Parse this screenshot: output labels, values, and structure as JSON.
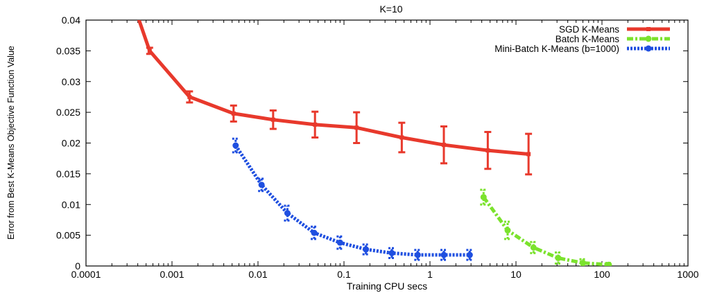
{
  "chart_data": {
    "type": "line",
    "title": "K=10",
    "xlabel": "Training CPU secs",
    "ylabel": "Error from Best K-Means Objective Function Value",
    "x_scale": "log",
    "xlim": [
      0.0001,
      1000
    ],
    "ylim": [
      0,
      0.04
    ],
    "x_ticks": [
      0.0001,
      0.001,
      0.01,
      0.1,
      1,
      10,
      100,
      1000
    ],
    "x_tick_labels": [
      "0.0001",
      "0.001",
      "0.01",
      "0.1",
      "1",
      "10",
      "100",
      "1000"
    ],
    "y_ticks": [
      0,
      0.005,
      0.01,
      0.015,
      0.02,
      0.025,
      0.03,
      0.035,
      0.04
    ],
    "y_tick_labels": [
      "0",
      "0.005",
      "0.01",
      "0.015",
      "0.02",
      "0.025",
      "0.03",
      "0.035",
      "0.04"
    ],
    "grid": false,
    "legend_position": "top-right",
    "series": [
      {
        "name": "SGD K-Means",
        "color": "#e8392c",
        "style": "solid",
        "x": [
          0.00038,
          0.00055,
          0.0016,
          0.0052,
          0.015,
          0.046,
          0.14,
          0.47,
          1.45,
          4.7,
          14
        ],
        "y": [
          0.0415,
          0.035,
          0.0275,
          0.0248,
          0.0238,
          0.023,
          0.0225,
          0.0209,
          0.0197,
          0.0188,
          0.0182
        ],
        "err": [
          0,
          0.0005,
          0.0009,
          0.0013,
          0.0015,
          0.0021,
          0.0025,
          0.0024,
          0.003,
          0.003,
          0.0033
        ]
      },
      {
        "name": "Batch K-Means",
        "color": "#7be22d",
        "style": "dash-dot",
        "x": [
          4.2,
          8.0,
          16,
          31,
          60,
          120
        ],
        "y": [
          0.0112,
          0.0058,
          0.003,
          0.0013,
          0.0005,
          0.0002
        ],
        "err": [
          0.0012,
          0.0014,
          0.0009,
          0.0009,
          0.0006,
          0.0003
        ]
      },
      {
        "name": "Mini-Batch K-Means (b=1000)",
        "color": "#1f4fe0",
        "style": "dotted",
        "x": [
          0.0055,
          0.011,
          0.022,
          0.045,
          0.09,
          0.18,
          0.36,
          0.72,
          1.45,
          2.9
        ],
        "y": [
          0.0196,
          0.0132,
          0.0086,
          0.0054,
          0.0038,
          0.0027,
          0.0021,
          0.0018,
          0.0018,
          0.0018
        ],
        "err": [
          0.0011,
          0.001,
          0.0012,
          0.001,
          0.001,
          0.0008,
          0.0008,
          0.0008,
          0.0008,
          0.0008
        ]
      }
    ]
  }
}
